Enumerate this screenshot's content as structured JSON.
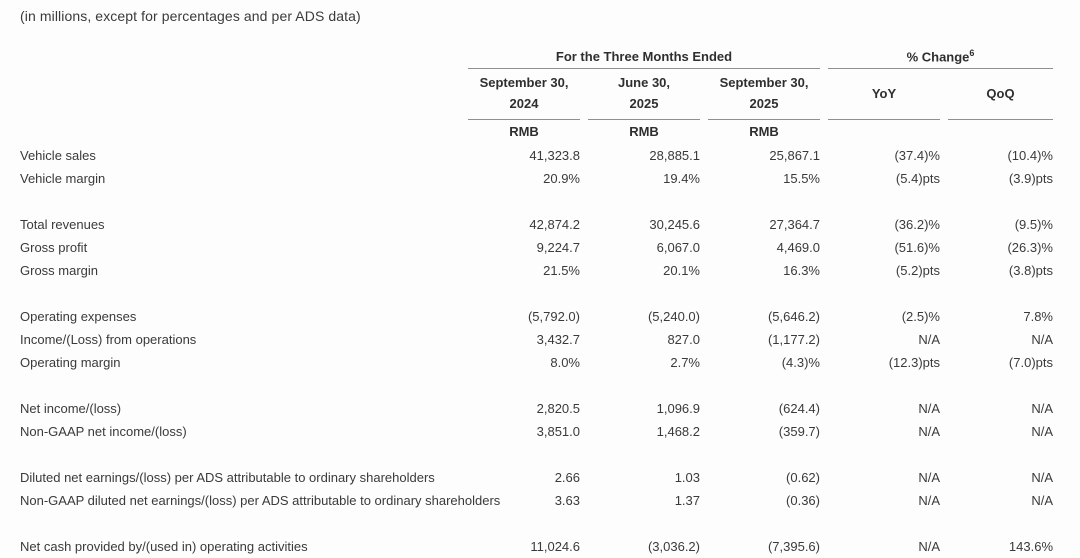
{
  "colors": {
    "background": "#fdfdfd",
    "text": "#3a3a3a",
    "heading": "#2f2f2f",
    "rule": "#8f8f8f"
  },
  "caption": "(in millions, except for percentages and per ADS data)",
  "table": {
    "three_months": {
      "label": "For the Three Months Ended"
    },
    "pct_change": {
      "label": "% Change",
      "sup": "6"
    },
    "period_columns": [
      {
        "line1": "September 30,",
        "line2": "2024",
        "unit": "RMB"
      },
      {
        "line1": "June 30,",
        "line2": "2025",
        "unit": "RMB"
      },
      {
        "line1": "September 30,",
        "line2": "2025",
        "unit": "RMB"
      }
    ],
    "change_columns": [
      {
        "label": "YoY"
      },
      {
        "label": "QoQ"
      }
    ],
    "groups": [
      {
        "rows": [
          {
            "label": "Vehicle sales",
            "values": [
              "41,323.8",
              "28,885.1",
              "25,867.1",
              "(37.4)%",
              "(10.4)%"
            ]
          },
          {
            "label": "Vehicle margin",
            "values": [
              "20.9%",
              "19.4%",
              "15.5%",
              "(5.4)pts",
              "(3.9)pts"
            ]
          }
        ]
      },
      {
        "rows": [
          {
            "label": "Total revenues",
            "values": [
              "42,874.2",
              "30,245.6",
              "27,364.7",
              "(36.2)%",
              "(9.5)%"
            ]
          },
          {
            "label": "Gross profit",
            "values": [
              "9,224.7",
              "6,067.0",
              "4,469.0",
              "(51.6)%",
              "(26.3)%"
            ]
          },
          {
            "label": "Gross margin",
            "values": [
              "21.5%",
              "20.1%",
              "16.3%",
              "(5.2)pts",
              "(3.8)pts"
            ]
          }
        ]
      },
      {
        "rows": [
          {
            "label": "Operating expenses",
            "values": [
              "(5,792.0)",
              "(5,240.0)",
              "(5,646.2)",
              "(2.5)%",
              "7.8%"
            ]
          },
          {
            "label": "Income/(Loss) from operations",
            "values": [
              "3,432.7",
              "827.0",
              "(1,177.2)",
              "N/A",
              "N/A"
            ]
          },
          {
            "label": "Operating margin",
            "values": [
              "8.0%",
              "2.7%",
              "(4.3)%",
              "(12.3)pts",
              "(7.0)pts"
            ]
          }
        ]
      },
      {
        "rows": [
          {
            "label": "Net income/(loss)",
            "values": [
              "2,820.5",
              "1,096.9",
              "(624.4)",
              "N/A",
              "N/A"
            ]
          },
          {
            "label": "Non-GAAP net income/(loss)",
            "values": [
              "3,851.0",
              "1,468.2",
              "(359.7)",
              "N/A",
              "N/A"
            ]
          }
        ]
      },
      {
        "rows": [
          {
            "label": "Diluted net earnings/(loss) per ADS attributable to ordinary shareholders",
            "values": [
              "2.66",
              "1.03",
              "(0.62)",
              "N/A",
              "N/A"
            ]
          },
          {
            "label": "Non-GAAP diluted net earnings/(loss) per ADS attributable to ordinary shareholders",
            "values": [
              "3.63",
              "1.37",
              "(0.36)",
              "N/A",
              "N/A"
            ]
          }
        ]
      },
      {
        "rows": [
          {
            "label": "Net cash provided by/(used in) operating activities",
            "values": [
              "11,024.6",
              "(3,036.2)",
              "(7,395.6)",
              "N/A",
              "143.6%"
            ]
          }
        ]
      }
    ]
  }
}
